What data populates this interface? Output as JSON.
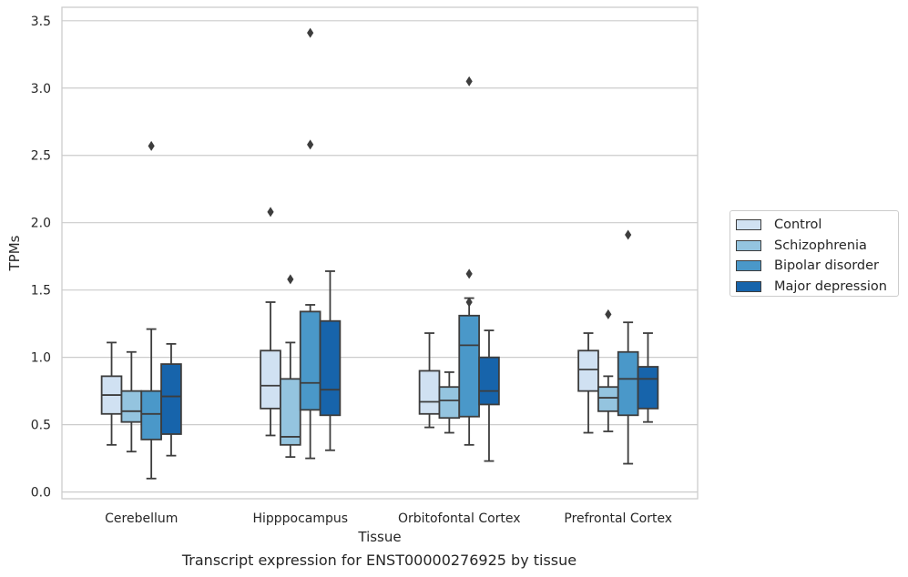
{
  "chart_data": {
    "type": "boxplot",
    "title": "Transcript expression for ENST00000276925 by tissue",
    "xlabel": "Tissue",
    "ylabel": "TPMs",
    "ylim": [
      -0.05,
      3.6
    ],
    "yticks": [
      "0.0",
      "0.5",
      "1.0",
      "1.5",
      "2.0",
      "2.5",
      "3.0",
      "3.5"
    ],
    "grid": "horizontal",
    "legend_position": "right",
    "categories": [
      "Cerebellum",
      "Hipppocampus",
      "Orbitofontal Cortex",
      "Prefrontal Cortex"
    ],
    "series": [
      {
        "name": "Control",
        "color": "#d0e1f2",
        "boxes": [
          {
            "whislo": 0.35,
            "q1": 0.58,
            "med": 0.72,
            "q3": 0.86,
            "whishi": 1.11,
            "fliers": []
          },
          {
            "whislo": 0.42,
            "q1": 0.62,
            "med": 0.79,
            "q3": 1.05,
            "whishi": 1.41,
            "fliers": [
              2.08
            ]
          },
          {
            "whislo": 0.48,
            "q1": 0.58,
            "med": 0.67,
            "q3": 0.9,
            "whishi": 1.18,
            "fliers": []
          },
          {
            "whislo": 0.44,
            "q1": 0.75,
            "med": 0.91,
            "q3": 1.05,
            "whishi": 1.18,
            "fliers": []
          }
        ]
      },
      {
        "name": "Schizophrenia",
        "color": "#94c4df",
        "boxes": [
          {
            "whislo": 0.3,
            "q1": 0.52,
            "med": 0.6,
            "q3": 0.75,
            "whishi": 1.04,
            "fliers": []
          },
          {
            "whislo": 0.26,
            "q1": 0.35,
            "med": 0.41,
            "q3": 0.84,
            "whishi": 1.11,
            "fliers": [
              1.58
            ]
          },
          {
            "whislo": 0.44,
            "q1": 0.55,
            "med": 0.68,
            "q3": 0.78,
            "whishi": 0.89,
            "fliers": []
          },
          {
            "whislo": 0.45,
            "q1": 0.6,
            "med": 0.7,
            "q3": 0.78,
            "whishi": 0.86,
            "fliers": [
              1.32
            ]
          }
        ]
      },
      {
        "name": "Bipolar disorder",
        "color": "#4a98c9",
        "boxes": [
          {
            "whislo": 0.1,
            "q1": 0.39,
            "med": 0.58,
            "q3": 0.75,
            "whishi": 1.21,
            "fliers": [
              2.57
            ]
          },
          {
            "whislo": 0.25,
            "q1": 0.61,
            "med": 0.81,
            "q3": 1.34,
            "whishi": 1.39,
            "fliers": [
              2.58,
              3.41
            ]
          },
          {
            "whislo": 0.35,
            "q1": 0.56,
            "med": 1.09,
            "q3": 1.31,
            "whishi": 1.44,
            "fliers": [
              1.41,
              1.62,
              3.05
            ]
          },
          {
            "whislo": 0.21,
            "q1": 0.57,
            "med": 0.84,
            "q3": 1.04,
            "whishi": 1.26,
            "fliers": [
              1.91
            ]
          }
        ]
      },
      {
        "name": "Major depression",
        "color": "#1764ab",
        "boxes": [
          {
            "whislo": 0.27,
            "q1": 0.43,
            "med": 0.71,
            "q3": 0.95,
            "whishi": 1.1,
            "fliers": []
          },
          {
            "whislo": 0.31,
            "q1": 0.57,
            "med": 0.76,
            "q3": 1.27,
            "whishi": 1.64,
            "fliers": []
          },
          {
            "whislo": 0.23,
            "q1": 0.65,
            "med": 0.75,
            "q3": 1.0,
            "whishi": 1.2,
            "fliers": []
          },
          {
            "whislo": 0.52,
            "q1": 0.62,
            "med": 0.84,
            "q3": 0.93,
            "whishi": 1.18,
            "fliers": []
          }
        ]
      }
    ]
  }
}
